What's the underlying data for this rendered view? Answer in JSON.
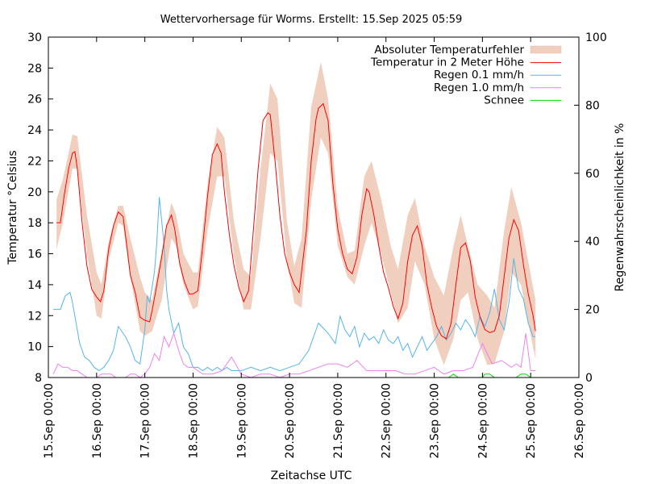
{
  "chart_data": {
    "type": "line",
    "title": "Wettervorhersage für Worms. Erstellt: 15.Sep 2025 05:59",
    "xlabel": "Zeitachse UTC",
    "ylabel": "Temperatur °Celsius",
    "y2label": "Regenwahrscheinlichkeit in %",
    "ylim": [
      8,
      30
    ],
    "y2lim": [
      0,
      100
    ],
    "xlim_days": [
      0,
      11
    ],
    "yticks": [
      "8",
      "10",
      "12",
      "14",
      "16",
      "18",
      "20",
      "22",
      "24",
      "26",
      "28",
      "30"
    ],
    "y2ticks": [
      "0",
      "20",
      "40",
      "60",
      "80",
      "100"
    ],
    "xticks": [
      "15.Sep 00:00",
      "16.Sep 00:00",
      "17.Sep 00:00",
      "18.Sep 00:00",
      "19.Sep 00:00",
      "20.Sep 00:00",
      "21.Sep 00:00",
      "22.Sep 00:00",
      "23.Sep 00:00",
      "24.Sep 00:00",
      "25.Sep 00:00",
      "26.Sep 00:00"
    ],
    "grid": false,
    "legend_position": "top-right",
    "legend": [
      {
        "label": "Absoluter Temperaturfehler",
        "color": "#f0cfbf",
        "kind": "band"
      },
      {
        "label": "Temperatur in 2 Meter Höhe",
        "color": "#ff0000",
        "kind": "line"
      },
      {
        "label": "Regen 0.1 mm/h",
        "color": "#56b4e9",
        "kind": "line"
      },
      {
        "label": "Regen 1.0 mm/h",
        "color": "#ee82ee",
        "kind": "line"
      },
      {
        "label": "Schnee",
        "color": "#00dd00",
        "kind": "line"
      }
    ],
    "series": [
      {
        "name": "Temperatur in 2 Meter Höhe",
        "axis": "y",
        "x_days": [
          0.17,
          0.25,
          0.33,
          0.42,
          0.5,
          0.55,
          0.6,
          0.7,
          0.8,
          0.9,
          1.0,
          1.08,
          1.15,
          1.25,
          1.35,
          1.45,
          1.55,
          1.63,
          1.7,
          1.8,
          1.9,
          2.0,
          2.1,
          2.15,
          2.25,
          2.35,
          2.45,
          2.55,
          2.62,
          2.72,
          2.82,
          2.92,
          3.0,
          3.1,
          3.2,
          3.3,
          3.4,
          3.5,
          3.58,
          3.65,
          3.75,
          3.85,
          3.95,
          4.05,
          4.15,
          4.25,
          4.35,
          4.45,
          4.55,
          4.6,
          4.7,
          4.8,
          4.9,
          5.0,
          5.1,
          5.2,
          5.35,
          5.45,
          5.55,
          5.6,
          5.7,
          5.8,
          5.9,
          6.0,
          6.1,
          6.2,
          6.3,
          6.4,
          6.5,
          6.6,
          6.65,
          6.75,
          6.85,
          6.95,
          7.05,
          7.15,
          7.25,
          7.35,
          7.45,
          7.55,
          7.65,
          7.75,
          7.85,
          7.95,
          8.05,
          8.15,
          8.25,
          8.35,
          8.45,
          8.55,
          8.65,
          8.75,
          8.85,
          8.95,
          9.05,
          9.15,
          9.25,
          9.35,
          9.45,
          9.55,
          9.65,
          9.75,
          9.85,
          9.95,
          10.05,
          10.1
        ],
        "values": [
          18.0,
          18.0,
          19.8,
          21.5,
          22.5,
          22.6,
          21.5,
          18.0,
          15.2,
          13.7,
          13.2,
          12.9,
          13.6,
          16.3,
          17.8,
          18.7,
          18.4,
          16.4,
          14.6,
          13.5,
          11.9,
          11.7,
          11.6,
          12.3,
          14.0,
          15.8,
          17.8,
          18.5,
          17.6,
          15.4,
          14.2,
          13.4,
          13.4,
          13.6,
          16.5,
          19.7,
          22.4,
          23.1,
          22.5,
          20.0,
          17.3,
          15.2,
          13.8,
          12.9,
          13.6,
          17.5,
          21.5,
          24.6,
          25.1,
          25.0,
          22.0,
          18.5,
          16.0,
          14.8,
          14.0,
          13.5,
          17.5,
          22.0,
          24.7,
          25.4,
          25.7,
          24.6,
          20.5,
          17.6,
          16.0,
          15.0,
          14.7,
          15.8,
          18.5,
          20.2,
          20.0,
          18.5,
          16.5,
          14.8,
          13.8,
          12.6,
          11.8,
          12.8,
          15.5,
          17.2,
          17.8,
          16.5,
          14.0,
          12.5,
          11.3,
          10.7,
          10.5,
          11.5,
          14.0,
          16.4,
          16.7,
          15.5,
          13.2,
          11.9,
          11.1,
          10.9,
          11.0,
          12.0,
          14.5,
          17.0,
          18.2,
          17.5,
          15.3,
          13.4,
          12.0,
          11.0
        ]
      },
      {
        "name": "Absoluter Temperaturfehler",
        "axis": "y",
        "kind": "band",
        "x_days": [
          0.17,
          0.3,
          0.5,
          0.6,
          0.8,
          1.0,
          1.1,
          1.25,
          1.45,
          1.55,
          1.7,
          1.9,
          2.0,
          2.15,
          2.35,
          2.55,
          2.65,
          2.8,
          3.0,
          3.1,
          3.3,
          3.5,
          3.65,
          3.85,
          4.05,
          4.2,
          4.4,
          4.6,
          4.75,
          4.95,
          5.1,
          5.25,
          5.45,
          5.65,
          5.8,
          6.0,
          6.2,
          6.35,
          6.55,
          6.7,
          6.9,
          7.1,
          7.25,
          7.45,
          7.6,
          7.8,
          8.0,
          8.2,
          8.4,
          8.55,
          8.7,
          8.9,
          9.1,
          9.25,
          9.45,
          9.6,
          9.8,
          9.95,
          10.1
        ],
        "upper": [
          19.5,
          20.8,
          23.7,
          23.6,
          18.5,
          14.8,
          14.0,
          16.8,
          19.1,
          19.1,
          17.0,
          14.5,
          13.5,
          13.0,
          16.2,
          19.3,
          18.5,
          16.0,
          14.8,
          14.8,
          20.5,
          24.2,
          23.5,
          18.0,
          15.0,
          14.5,
          21.5,
          27.0,
          26.0,
          18.0,
          15.2,
          17.0,
          25.5,
          28.4,
          26.0,
          19.0,
          16.0,
          16.2,
          21.0,
          22.0,
          19.5,
          16.5,
          15.0,
          18.5,
          19.6,
          16.5,
          14.5,
          13.3,
          16.5,
          18.5,
          16.5,
          14.0,
          13.3,
          12.5,
          17.5,
          20.3,
          18.0,
          15.5,
          13.0
        ],
        "lower": [
          16.3,
          18.0,
          21.5,
          21.5,
          16.0,
          12.0,
          11.8,
          15.6,
          18.0,
          17.8,
          14.5,
          11.0,
          10.7,
          11.0,
          13.0,
          17.0,
          16.5,
          14.0,
          12.4,
          12.6,
          17.5,
          21.0,
          21.0,
          15.8,
          12.4,
          12.4,
          17.0,
          22.5,
          22.0,
          15.5,
          12.8,
          12.5,
          19.5,
          23.5,
          22.5,
          16.5,
          14.5,
          14.0,
          16.5,
          18.0,
          16.0,
          13.5,
          11.5,
          12.5,
          15.5,
          14.0,
          10.5,
          8.8,
          10.5,
          13.0,
          13.5,
          10.5,
          8.8,
          8.9,
          11.0,
          14.8,
          14.0,
          11.5,
          9.2
        ]
      },
      {
        "name": "Regen 0.1 mm/h",
        "axis": "y2",
        "x_days": [
          0.1,
          0.25,
          0.35,
          0.45,
          0.5,
          0.55,
          0.65,
          0.75,
          0.85,
          0.95,
          1.05,
          1.15,
          1.25,
          1.35,
          1.45,
          1.55,
          1.6,
          1.7,
          1.8,
          1.9,
          2.0,
          2.05,
          2.1,
          2.2,
          2.25,
          2.3,
          2.4,
          2.45,
          2.5,
          2.6,
          2.7,
          2.8,
          2.9,
          3.0,
          3.1,
          3.2,
          3.3,
          3.4,
          3.5,
          3.6,
          3.7,
          3.8,
          3.9,
          4.0,
          4.2,
          4.4,
          4.6,
          4.8,
          5.0,
          5.2,
          5.4,
          5.6,
          5.8,
          5.95,
          6.05,
          6.15,
          6.25,
          6.35,
          6.45,
          6.55,
          6.65,
          6.75,
          6.85,
          6.95,
          7.05,
          7.15,
          7.25,
          7.35,
          7.45,
          7.55,
          7.65,
          7.75,
          7.85,
          7.95,
          8.05,
          8.15,
          8.25,
          8.35,
          8.45,
          8.55,
          8.65,
          8.75,
          8.85,
          8.95,
          9.05,
          9.15,
          9.25,
          9.35,
          9.45,
          9.55,
          9.65,
          9.75,
          9.85,
          9.95,
          10.05,
          10.1
        ],
        "values": [
          20,
          20,
          24,
          25,
          22,
          18,
          10,
          6,
          5,
          3,
          2,
          3,
          5,
          8,
          15,
          13,
          12,
          9,
          5,
          4,
          14,
          24,
          22,
          31,
          40,
          53,
          39,
          26,
          20,
          13,
          16,
          9,
          7,
          3,
          3,
          2,
          3,
          2,
          3,
          2,
          3,
          2,
          2,
          2,
          3,
          2,
          3,
          2,
          3,
          4,
          8,
          16,
          13,
          10,
          18,
          14,
          12,
          15,
          9,
          13,
          11,
          12,
          10,
          14,
          11,
          10,
          12,
          8,
          10,
          6,
          9,
          12,
          8,
          10,
          12,
          15,
          11,
          13,
          16,
          14,
          17,
          15,
          12,
          18,
          15,
          19,
          26,
          17,
          14,
          22,
          35,
          26,
          23,
          16,
          12,
          12
        ]
      },
      {
        "name": "Regen 1.0 mm/h",
        "axis": "y2",
        "x_days": [
          0.1,
          0.2,
          0.3,
          0.4,
          0.5,
          0.6,
          0.7,
          0.8,
          0.9,
          1.0,
          1.1,
          1.2,
          1.3,
          1.4,
          1.5,
          1.6,
          1.7,
          1.8,
          1.9,
          2.0,
          2.1,
          2.2,
          2.3,
          2.4,
          2.5,
          2.6,
          2.7,
          2.8,
          2.9,
          3.0,
          3.2,
          3.4,
          3.6,
          3.8,
          4.0,
          4.2,
          4.4,
          4.6,
          4.8,
          5.0,
          5.2,
          5.4,
          5.6,
          5.8,
          6.0,
          6.2,
          6.4,
          6.6,
          6.8,
          7.0,
          7.2,
          7.4,
          7.6,
          7.8,
          8.0,
          8.2,
          8.4,
          8.6,
          8.8,
          9.0,
          9.2,
          9.4,
          9.6,
          9.7,
          9.8,
          9.9,
          10.0,
          10.1
        ],
        "values": [
          1,
          4,
          3,
          3,
          2,
          2,
          1,
          0,
          0,
          0,
          1,
          1,
          1,
          0,
          0,
          0,
          1,
          1,
          0,
          1,
          3,
          7,
          5,
          12,
          9,
          13,
          8,
          4,
          3,
          3,
          1,
          1,
          2,
          6,
          1,
          0,
          1,
          1,
          0,
          1,
          1,
          2,
          3,
          4,
          4,
          3,
          5,
          2,
          2,
          2,
          2,
          1,
          1,
          2,
          3,
          1,
          2,
          2,
          3,
          10,
          4,
          5,
          3,
          4,
          3,
          13,
          2,
          2
        ]
      },
      {
        "name": "Schnee",
        "axis": "y2",
        "x_days": [
          8.1,
          8.3,
          8.4,
          8.5,
          8.7,
          9.0,
          9.05,
          9.15,
          9.25,
          9.5,
          9.7,
          9.8,
          9.9,
          10.0
        ],
        "values": [
          0,
          0,
          1,
          0,
          0,
          0,
          1,
          1,
          0,
          0,
          0,
          1,
          1,
          0
        ]
      }
    ]
  }
}
